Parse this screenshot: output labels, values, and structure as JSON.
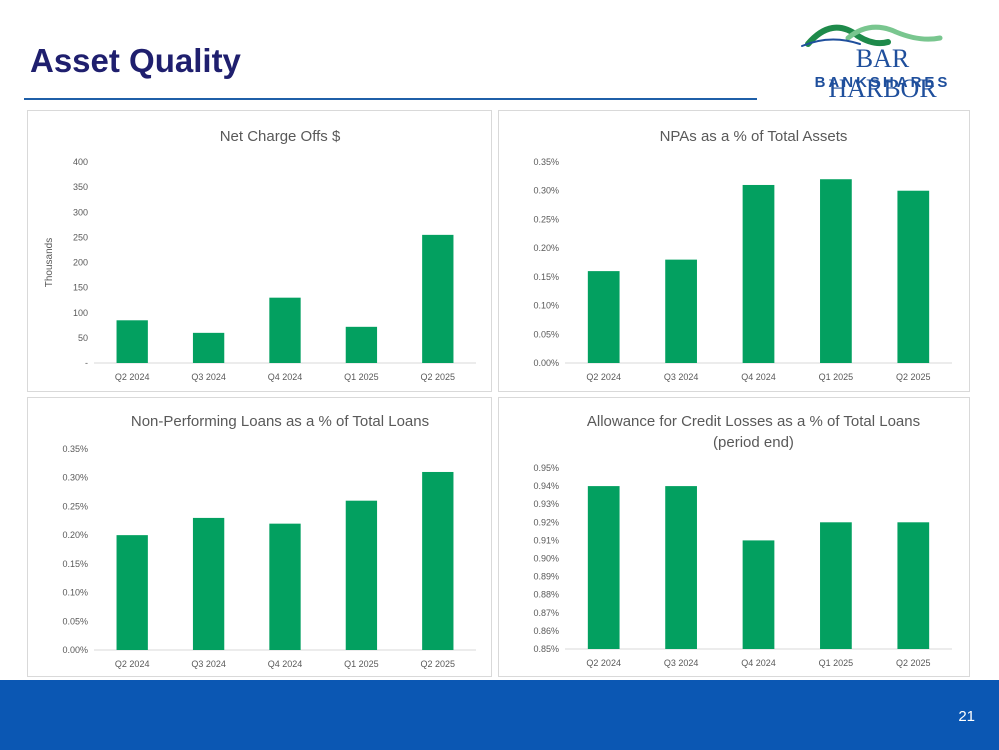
{
  "slide": {
    "title": "Asset Quality",
    "page_number": "21",
    "logo": {
      "line1": "BAR HARBOR",
      "line2": "BANKSHARES"
    }
  },
  "colors": {
    "bar": "#03a060",
    "title": "#1f1f6e",
    "footer": "#0b57b3",
    "logo": "#1f4f9c",
    "logo_green": "#1e8a4a",
    "logo_lightgreen": "#79c68f"
  },
  "chart_data": [
    {
      "type": "bar",
      "title": "Net Charge Offs $",
      "title_lines": [
        "Net Charge Offs $"
      ],
      "categories": [
        "Q2 2024",
        "Q3 2024",
        "Q4 2024",
        "Q1 2025",
        "Q2 2025"
      ],
      "values": [
        85,
        60,
        130,
        72,
        255
      ],
      "ylabel": "Thousands",
      "ylim": [
        0,
        400
      ],
      "yticks": [
        0,
        50,
        100,
        150,
        200,
        250,
        300,
        350,
        400
      ],
      "ytick_labels": [
        "-",
        "50",
        "100",
        "150",
        "200",
        "250",
        "300",
        "350",
        "400"
      ]
    },
    {
      "type": "bar",
      "title": "NPAs as a % of Total Assets",
      "title_lines": [
        "NPAs as a % of Total Assets"
      ],
      "categories": [
        "Q2 2024",
        "Q3 2024",
        "Q4 2024",
        "Q1 2025",
        "Q2 2025"
      ],
      "values": [
        0.16,
        0.18,
        0.31,
        0.32,
        0.3
      ],
      "ylabel": "",
      "ylim": [
        0,
        0.35
      ],
      "yticks": [
        0,
        0.05,
        0.1,
        0.15,
        0.2,
        0.25,
        0.3,
        0.35
      ],
      "ytick_labels": [
        "0.00%",
        "0.05%",
        "0.10%",
        "0.15%",
        "0.20%",
        "0.25%",
        "0.30%",
        "0.35%"
      ]
    },
    {
      "type": "bar",
      "title": "Non-Performing Loans as a % of Total Loans",
      "title_lines": [
        "Non-Performing Loans as a % of Total Loans"
      ],
      "categories": [
        "Q2 2024",
        "Q3 2024",
        "Q4 2024",
        "Q1 2025",
        "Q2 2025"
      ],
      "values": [
        0.2,
        0.23,
        0.22,
        0.26,
        0.31
      ],
      "ylabel": "",
      "ylim": [
        0,
        0.35
      ],
      "yticks": [
        0,
        0.05,
        0.1,
        0.15,
        0.2,
        0.25,
        0.3,
        0.35
      ],
      "ytick_labels": [
        "0.00%",
        "0.05%",
        "0.10%",
        "0.15%",
        "0.20%",
        "0.25%",
        "0.30%",
        "0.35%"
      ]
    },
    {
      "type": "bar",
      "title": "Allowance for Credit Losses as a % of Total Loans (period end)",
      "title_lines": [
        "Allowance for Credit Losses as a % of Total Loans",
        "(period end)"
      ],
      "categories": [
        "Q2 2024",
        "Q3 2024",
        "Q4 2024",
        "Q1 2025",
        "Q2 2025"
      ],
      "values": [
        0.94,
        0.94,
        0.91,
        0.92,
        0.92
      ],
      "ylabel": "",
      "ylim": [
        0.85,
        0.95
      ],
      "yticks": [
        0.85,
        0.86,
        0.87,
        0.88,
        0.89,
        0.9,
        0.91,
        0.92,
        0.93,
        0.94,
        0.95
      ],
      "ytick_labels": [
        "0.85%",
        "0.86%",
        "0.87%",
        "0.88%",
        "0.89%",
        "0.90%",
        "0.91%",
        "0.92%",
        "0.93%",
        "0.94%",
        "0.95%"
      ]
    }
  ]
}
